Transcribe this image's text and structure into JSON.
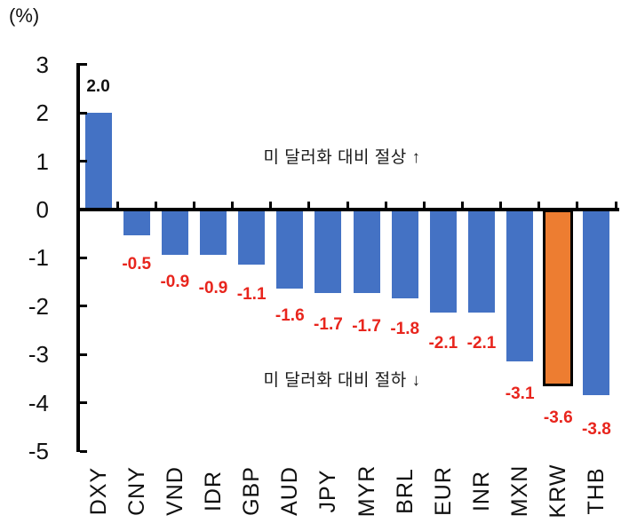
{
  "chart_data": {
    "type": "bar",
    "title": "",
    "unit_label": "(%)",
    "xlabel": "",
    "ylabel": "(%)",
    "categories": [
      "DXY",
      "CNY",
      "VND",
      "IDR",
      "GBP",
      "AUD",
      "JPY",
      "MYR",
      "BRL",
      "EUR",
      "INR",
      "MXN",
      "KRW",
      "THB"
    ],
    "values": [
      2.0,
      -0.5,
      -0.9,
      -0.9,
      -1.1,
      -1.6,
      -1.7,
      -1.7,
      -1.8,
      -2.1,
      -2.1,
      -3.1,
      -3.6,
      -3.8
    ],
    "data_labels": [
      "2.0",
      "-0.5",
      "-0.9",
      "-0.9",
      "-1.1",
      "-1.6",
      "-1.7",
      "-1.7",
      "-1.8",
      "-2.1",
      "-2.1",
      "-3.1",
      "-3.6",
      "-3.8"
    ],
    "highlight_category": "KRW",
    "y_ticks": [
      3,
      2,
      1,
      0,
      -1,
      -2,
      -3,
      -4,
      -5
    ],
    "ylim": [
      -5,
      3
    ],
    "grid": "off",
    "legend": "none",
    "annotations": [
      {
        "text": "미 달러화 대비 절상 ↑",
        "position": "upper"
      },
      {
        "text": "미 달러화 대비 절하 ↓",
        "position": "lower"
      }
    ],
    "colors": {
      "bar": "#4472C4",
      "highlight_bar": "#ED7D31",
      "highlight_border": "#000000",
      "negative_label": "#E8251D",
      "positive_label": "#111111",
      "axis": "#000000"
    }
  }
}
